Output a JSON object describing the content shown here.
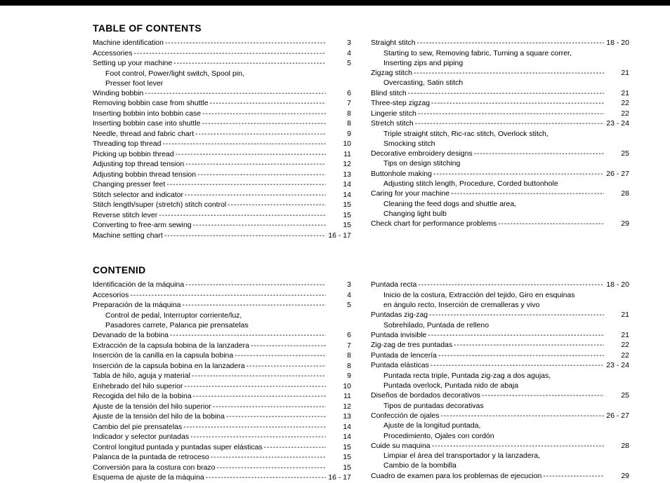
{
  "sections": [
    {
      "title": "TABLE OF CONTENTS",
      "columns": [
        [
          {
            "type": "entry",
            "level": 0,
            "label": "Machine identification",
            "page": "3"
          },
          {
            "type": "entry",
            "level": 0,
            "label": "Accessories",
            "page": "4"
          },
          {
            "type": "entry",
            "level": 0,
            "label": "Setting up your machine",
            "page": "5"
          },
          {
            "type": "sub",
            "text": "Foot control, Power/light switch, Spool pin,"
          },
          {
            "type": "sub",
            "text": "Presser foot lever"
          },
          {
            "type": "entry",
            "level": 0,
            "label": "Winding bobbin",
            "page": "6"
          },
          {
            "type": "entry",
            "level": 0,
            "label": "Removing bobbin case from shuttle",
            "page": "7"
          },
          {
            "type": "entry",
            "level": 0,
            "label": "Inserting bobbin into bobbin case",
            "page": "8"
          },
          {
            "type": "entry",
            "level": 0,
            "label": "Inserting bobbin case into shuttle",
            "page": "8"
          },
          {
            "type": "entry",
            "level": 0,
            "label": "Needle, thread and fabric chart",
            "page": "9"
          },
          {
            "type": "entry",
            "level": 0,
            "label": "Threading top thread",
            "page": "10"
          },
          {
            "type": "entry",
            "level": 0,
            "label": "Picking up bobbin thread",
            "page": "11"
          },
          {
            "type": "entry",
            "level": 0,
            "label": "Adjusting top thread tension",
            "page": "12"
          },
          {
            "type": "entry",
            "level": 0,
            "label": "Adjusting bobbin thread tension",
            "page": "13"
          },
          {
            "type": "entry",
            "level": 0,
            "label": "Changing presser feet",
            "page": "14"
          },
          {
            "type": "entry",
            "level": 0,
            "label": "Stitch selector and indicator",
            "page": "14"
          },
          {
            "type": "entry",
            "level": 0,
            "label": "Stitch length/super (stretch) stitch control",
            "page": "15"
          },
          {
            "type": "entry",
            "level": 0,
            "label": "Reverse stitch lever",
            "page": "15"
          },
          {
            "type": "entry",
            "level": 0,
            "label": "Converting to free-arm sewing",
            "page": "15"
          },
          {
            "type": "entry",
            "level": 0,
            "label": "Machine setting chart",
            "page": "16 - 17"
          }
        ],
        [
          {
            "type": "entry",
            "level": 0,
            "label": "Straight stitch",
            "page": "18 - 20"
          },
          {
            "type": "sub",
            "text": "Starting to sew, Removing fabric, Turning a square correr,"
          },
          {
            "type": "sub",
            "text": "Inserting zips and piping"
          },
          {
            "type": "entry",
            "level": 0,
            "label": "Zigzag stitch",
            "page": "21"
          },
          {
            "type": "sub",
            "text": "Overcasting, Satin stitch"
          },
          {
            "type": "entry",
            "level": 0,
            "label": "Blind stitch",
            "page": "21"
          },
          {
            "type": "entry",
            "level": 0,
            "label": "Three-step zigzag",
            "page": "22"
          },
          {
            "type": "entry",
            "level": 0,
            "label": "Lingerie stitch",
            "page": "22"
          },
          {
            "type": "entry",
            "level": 0,
            "label": "Stretch stitch",
            "page": "23 - 24"
          },
          {
            "type": "sub",
            "text": "Triple straight stitch, Ric-rac stitch, Overlock stitch,"
          },
          {
            "type": "sub",
            "text": "Smocking stitch"
          },
          {
            "type": "entry",
            "level": 0,
            "label": "Decorative embroidery designs",
            "page": "25"
          },
          {
            "type": "sub",
            "text": "Tips on design stitching"
          },
          {
            "type": "entry",
            "level": 0,
            "label": "Buttonhole making",
            "page": "26 - 27"
          },
          {
            "type": "sub",
            "text": "Adjusting stitch length, Procedure, Corded buttonhole"
          },
          {
            "type": "entry",
            "level": 0,
            "label": "Caring for your machine",
            "page": "28"
          },
          {
            "type": "sub",
            "text": "Cleaning the feed dogs and shuttle area,"
          },
          {
            "type": "sub",
            "text": "Changing light bulb"
          },
          {
            "type": "entry",
            "level": 0,
            "label": "Check chart for performance problems",
            "page": "29"
          }
        ]
      ]
    },
    {
      "title": "CONTENID",
      "columns": [
        [
          {
            "type": "entry",
            "level": 0,
            "label": "Identificación de la máquina",
            "page": "3"
          },
          {
            "type": "entry",
            "level": 0,
            "label": "Accesorios",
            "page": "4"
          },
          {
            "type": "entry",
            "level": 0,
            "label": "Preparación de la máquina",
            "page": "5"
          },
          {
            "type": "sub",
            "text": "Control de pedal, Interruptor corriente/luz,"
          },
          {
            "type": "sub",
            "text": "Pasadores carrete, Palanca pie prensatelas"
          },
          {
            "type": "entry",
            "level": 0,
            "label": "Devanado de la bobina",
            "page": "6"
          },
          {
            "type": "entry",
            "level": 0,
            "label": "Extracción de la capsula bobina de la lanzadera",
            "page": "7"
          },
          {
            "type": "entry",
            "level": 0,
            "label": "Inserción de la canilla en la capsula bobina",
            "page": "8"
          },
          {
            "type": "entry",
            "level": 0,
            "label": "Inserción de la capsula bobina en la lanzadera",
            "page": "8"
          },
          {
            "type": "entry",
            "level": 0,
            "label": "Tabla de hilo, aguja y material",
            "page": "9"
          },
          {
            "type": "entry",
            "level": 0,
            "label": "Enhebrado del hilo superior",
            "page": "10"
          },
          {
            "type": "entry",
            "level": 0,
            "label": "Recogida del hilo de la bobina",
            "page": "11"
          },
          {
            "type": "entry",
            "level": 0,
            "label": "Ajuste de la tensión del hilo superior",
            "page": "12"
          },
          {
            "type": "entry",
            "level": 0,
            "label": "Ajuste de la tensión del hilo de la bobina",
            "page": "13"
          },
          {
            "type": "entry",
            "level": 0,
            "label": "Cambio del pie prensatelas",
            "page": "14"
          },
          {
            "type": "entry",
            "level": 0,
            "label": "Indicador y selector puntadas",
            "page": "14"
          },
          {
            "type": "entry",
            "level": 0,
            "label": "Control longitud puntada y puntadas super elásticas",
            "page": "15"
          },
          {
            "type": "entry",
            "level": 0,
            "label": "Palanca de la puntada de retroceso",
            "page": "15"
          },
          {
            "type": "entry",
            "level": 0,
            "label": "Conversión para la costura con brazo",
            "page": "15"
          },
          {
            "type": "entry",
            "level": 0,
            "label": "Esquema de ajuste de la máquina",
            "page": "16 - 17"
          }
        ],
        [
          {
            "type": "entry",
            "level": 0,
            "label": "Puntada recta",
            "page": "18 - 20"
          },
          {
            "type": "sub",
            "text": "Inicio de la costura, Extracción del tejido, Giro en esquinas"
          },
          {
            "type": "sub",
            "text": "en ángulo recto, Inserción de cremalleras y vivo"
          },
          {
            "type": "entry",
            "level": 0,
            "label": "Puntadas zig-zag",
            "page": "21"
          },
          {
            "type": "sub",
            "text": "Sobrehilado, Puntada de relleno"
          },
          {
            "type": "entry",
            "level": 0,
            "label": "Puntada invisible",
            "page": "21"
          },
          {
            "type": "entry",
            "level": 0,
            "label": "Zig-zag de tres puntadas",
            "page": "22"
          },
          {
            "type": "entry",
            "level": 0,
            "label": "Puntada de lencería",
            "page": "22"
          },
          {
            "type": "entry",
            "level": 0,
            "label": "Puntada elásticas",
            "page": "23 - 24"
          },
          {
            "type": "sub",
            "text": "Puntada recta triple, Puntada zig-zag a dos agujas,"
          },
          {
            "type": "sub",
            "text": "Puntada overlock, Puntada nido de abaja"
          },
          {
            "type": "entry",
            "level": 0,
            "label": "Diseños de bordados decorativos",
            "page": "25"
          },
          {
            "type": "sub",
            "text": "Tipos de puntadas decorativas"
          },
          {
            "type": "entry",
            "level": 0,
            "label": "Confección de ojales",
            "page": "26 - 27"
          },
          {
            "type": "sub",
            "text": "Ajuste de la longitud puntada,"
          },
          {
            "type": "sub",
            "text": "Procedimiento, Ojales con cordón"
          },
          {
            "type": "entry",
            "level": 0,
            "label": "Cuide su maquina",
            "page": "28"
          },
          {
            "type": "sub",
            "text": "Limpiar el área del transportador y la lanzadera,"
          },
          {
            "type": "sub",
            "text": "Cambio de la bombilla"
          },
          {
            "type": "entry",
            "level": 0,
            "label": "Cuadro de examen para los problemas de ejecucion",
            "page": "29"
          }
        ]
      ]
    }
  ],
  "leader_char": "-"
}
